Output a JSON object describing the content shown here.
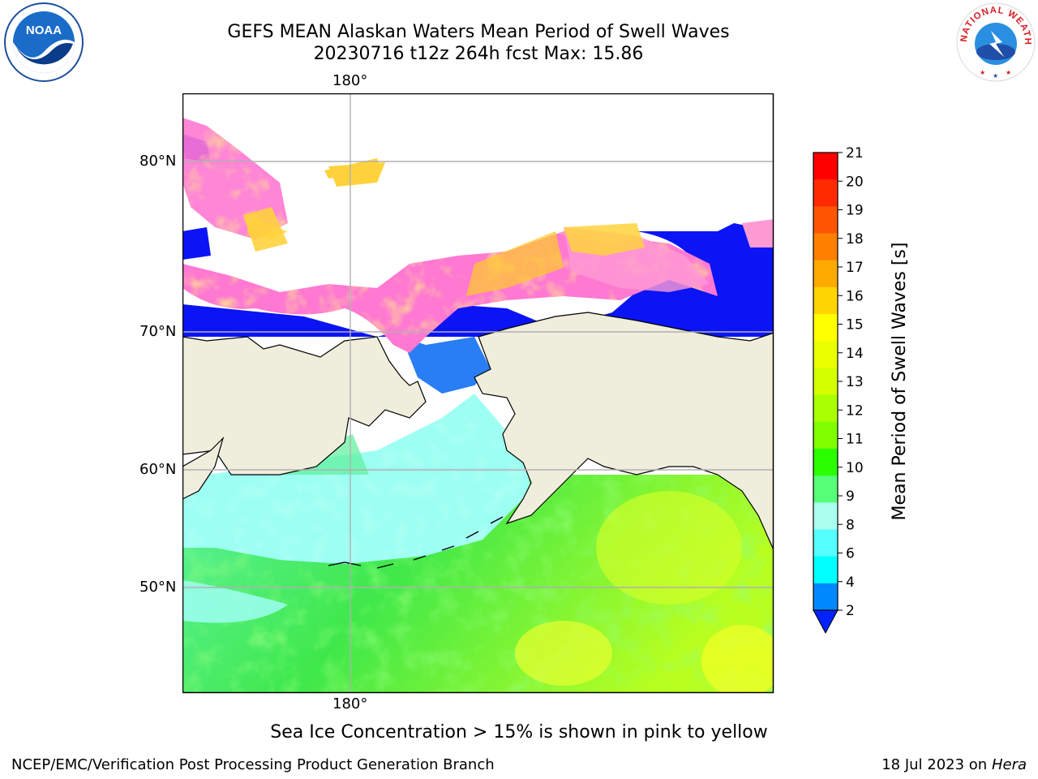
{
  "title": {
    "line1": "GEFS MEAN Alaskan Waters Mean Period of Swell Waves",
    "line2": "20230716 t12z 264h fcst   Max: 15.86"
  },
  "map": {
    "lon_labels": {
      "top": "180°",
      "bottom": "180°"
    },
    "lat_labels": [
      "80°N",
      "70°N",
      "60°N",
      "50°N"
    ],
    "colors": {
      "land": "#efeddc",
      "ice_pink": "#ff70d0",
      "ice_yellow": "#ffd23c",
      "grid": "#b0b0b0"
    }
  },
  "colorbar": {
    "label": "Mean Period of Swell Waves [s]",
    "ticks": [
      "21",
      "20",
      "19",
      "18",
      "17",
      "16",
      "15",
      "14",
      "13",
      "12",
      "11",
      "10",
      "9",
      "8",
      "6",
      "4",
      "2"
    ],
    "colors": [
      "#ff0000",
      "#ff2a00",
      "#ff5500",
      "#ff7f00",
      "#ffaa00",
      "#ffd400",
      "#ffff00",
      "#eaff00",
      "#d4ff00",
      "#aaff00",
      "#7fff00",
      "#2aff00",
      "#55ff77",
      "#aaffee",
      "#55ffff",
      "#00ffff",
      "#0088ff"
    ],
    "extend_color": "#0022ff"
  },
  "caption": "Sea Ice Concentration > 15% is shown in pink to yellow",
  "credit": "NCEP/EMC/Verification Post Processing Product Generation Branch",
  "date": {
    "text": "18 Jul 2023 on ",
    "machine": "Hera"
  },
  "logos": {
    "noaa": "NOAA",
    "nws": "NATIONAL WEATHER SERVICE"
  }
}
